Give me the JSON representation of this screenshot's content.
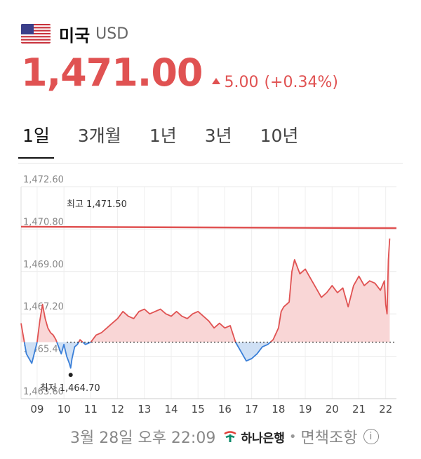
{
  "header": {
    "country": "미국",
    "code": "USD"
  },
  "quote": {
    "price": "1,471.00",
    "change": "5.00",
    "change_pct": "(+0.34%)"
  },
  "tabs": [
    {
      "label": "1일",
      "active": true
    },
    {
      "label": "3개월",
      "active": false
    },
    {
      "label": "1년",
      "active": false
    },
    {
      "label": "3년",
      "active": false
    },
    {
      "label": "10년",
      "active": false
    }
  ],
  "footer": {
    "timestamp": "3월 28일 오후 22:09",
    "bank": "하나은행",
    "sep": "•",
    "disclaimer": "면책조항",
    "info": "i"
  },
  "colors": {
    "accent": "#e05252",
    "below": "#3a7fd8",
    "below_fill": "#cfe0f5",
    "above_fill": "#f9d6d6"
  },
  "chart_data": {
    "type": "area",
    "yticks": [
      "1,472.60",
      "1,470.80",
      "1,469.00",
      "1,467.20",
      "1,465.40",
      "1,463.60"
    ],
    "yvalues": [
      1472.6,
      1470.8,
      1469.0,
      1467.2,
      1465.4,
      1463.6
    ],
    "ylim": [
      1463.6,
      1472.6
    ],
    "xticks": [
      "09",
      "10",
      "11",
      "12",
      "13",
      "14",
      "15",
      "16",
      "17",
      "18",
      "19",
      "20",
      "21",
      "22"
    ],
    "xlim": [
      8.4,
      22.4
    ],
    "baseline": 1466.0,
    "prev_close_line": 1470.9,
    "high_label": "최고 1,471.50",
    "low_label": "최저 1,464.70",
    "low_point": {
      "x": 10.25,
      "y": 1464.7
    },
    "series": [
      {
        "x": [
          8.4,
          8.6,
          8.8,
          9.0,
          9.1,
          9.2,
          9.3,
          9.4,
          9.5,
          9.6,
          9.7,
          9.8,
          9.9,
          10.0,
          10.1,
          10.2,
          10.25,
          10.3,
          10.4,
          10.5,
          10.6,
          10.8,
          11.0,
          11.2,
          11.4,
          11.6,
          11.8,
          12.0,
          12.2,
          12.4,
          12.6,
          12.8,
          13.0,
          13.2,
          13.4,
          13.6,
          13.8,
          14.0,
          14.2,
          14.4,
          14.6,
          14.8,
          15.0,
          15.2,
          15.4,
          15.6,
          15.8,
          16.0,
          16.2,
          16.4,
          16.6,
          16.8,
          17.0,
          17.2,
          17.4,
          17.6,
          17.8,
          18.0,
          18.1,
          18.2,
          18.4,
          18.5,
          18.6,
          18.8,
          19.0,
          19.2,
          19.4,
          19.6,
          19.8,
          20.0,
          20.2,
          20.4,
          20.6,
          20.8,
          21.0,
          21.2,
          21.4,
          21.6,
          21.8,
          21.95,
          22.0,
          22.05,
          22.1,
          22.15
        ],
        "y": [
          1466.8,
          1465.5,
          1465.1,
          1466.0,
          1466.9,
          1467.6,
          1467.0,
          1466.6,
          1466.4,
          1466.3,
          1466.1,
          1465.8,
          1465.5,
          1465.9,
          1465.4,
          1465.1,
          1464.9,
          1465.3,
          1465.8,
          1465.9,
          1466.1,
          1465.9,
          1466.0,
          1466.3,
          1466.4,
          1466.6,
          1466.8,
          1467.0,
          1467.3,
          1467.1,
          1467.0,
          1467.3,
          1467.4,
          1467.2,
          1467.3,
          1467.4,
          1467.2,
          1467.1,
          1467.3,
          1467.1,
          1467.0,
          1467.2,
          1467.3,
          1467.1,
          1466.9,
          1466.6,
          1466.8,
          1466.6,
          1466.7,
          1466.0,
          1465.6,
          1465.2,
          1465.3,
          1465.5,
          1465.8,
          1465.9,
          1466.1,
          1466.6,
          1467.3,
          1467.5,
          1467.7,
          1469.0,
          1469.5,
          1468.9,
          1469.1,
          1468.7,
          1468.3,
          1467.9,
          1468.1,
          1468.4,
          1468.1,
          1468.3,
          1467.5,
          1468.4,
          1468.8,
          1468.4,
          1468.6,
          1468.5,
          1468.2,
          1468.6,
          1467.6,
          1467.2,
          1469.5,
          1470.4
        ]
      }
    ]
  }
}
